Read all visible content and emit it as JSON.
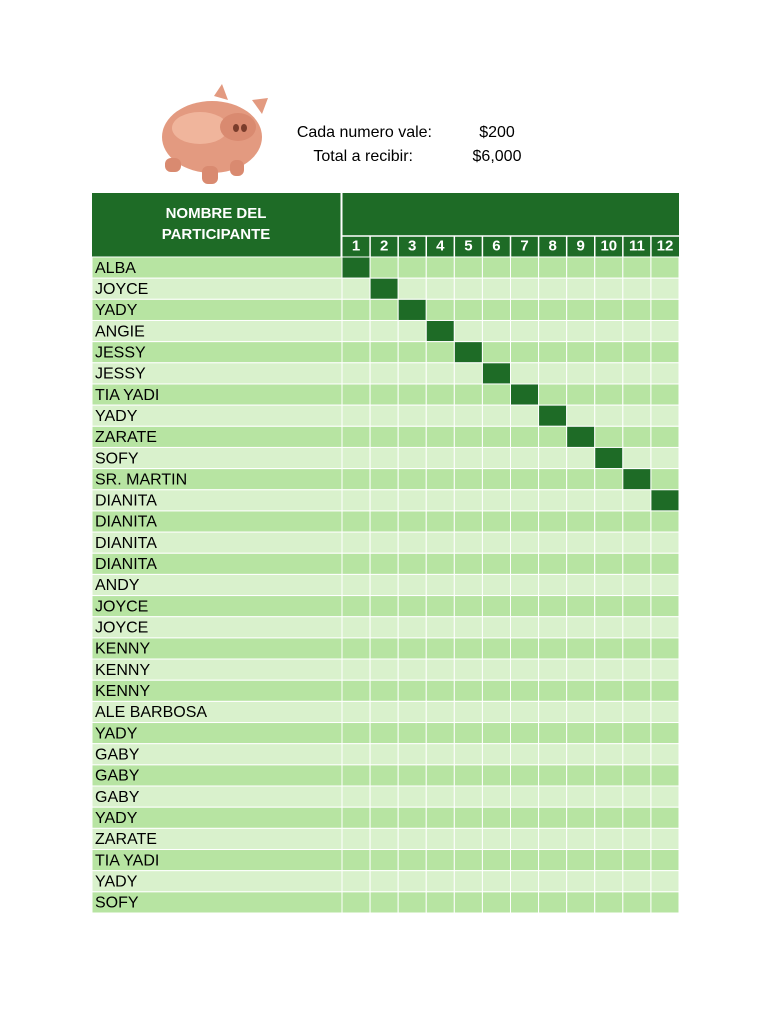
{
  "header": {
    "labels": [
      "Cada numero vale:",
      "Total a recibir:"
    ],
    "amounts": [
      "$200",
      "$6,000"
    ]
  },
  "table": {
    "name_header": [
      "NOMBRE DEL",
      "PARTICIPANTE"
    ],
    "columns": [
      1,
      2,
      3,
      4,
      5,
      6,
      7,
      8,
      9,
      10,
      11,
      12
    ],
    "rows": [
      "ALBA",
      "JOYCE",
      "YADY",
      "ANGIE",
      "JESSY",
      "JESSY",
      "TIA YADI",
      "YADY",
      "ZARATE",
      "SOFY",
      "SR. MARTIN",
      "DIANITA",
      "DIANITA",
      "DIANITA",
      "DIANITA",
      "ANDY",
      "JOYCE",
      "JOYCE",
      "KENNY",
      "KENNY",
      "KENNY",
      "ALE BARBOSA",
      "YADY",
      "GABY",
      "GABY",
      "GABY",
      "YADY",
      "ZARATE",
      "TIA YADI",
      "YADY",
      "SOFY"
    ]
  }
}
